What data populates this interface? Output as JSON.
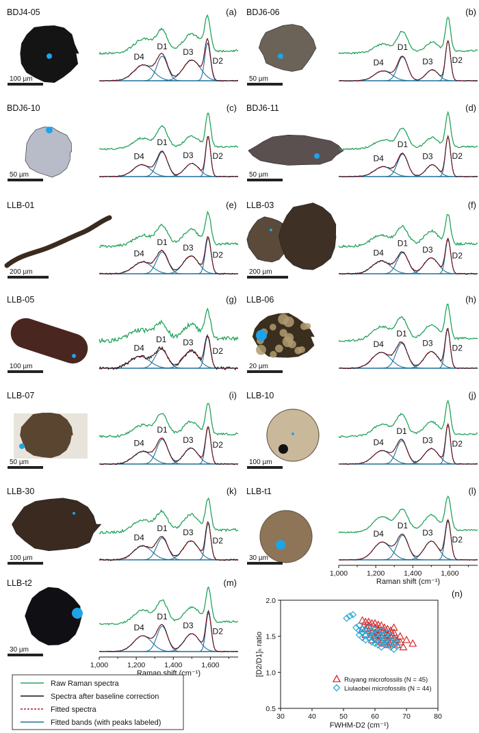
{
  "panels": [
    {
      "letter": "(a)",
      "specimen": "BDJ4-05",
      "scale_label": "100 µm",
      "noise": 1.5,
      "noise_fit": 0.7,
      "bands": {
        "D4": [
          0.4,
          1240,
          95
        ],
        "D1": [
          0.62,
          1340,
          52
        ],
        "D3": [
          0.52,
          1500,
          85
        ],
        "D2": [
          0.95,
          1585,
          28
        ]
      }
    },
    {
      "letter": "(b)",
      "specimen": "BDJ6-06",
      "scale_label": "50 µm",
      "noise": 1.2,
      "noise_fit": 0.5,
      "bands": {
        "D4": [
          0.25,
          1240,
          85
        ],
        "D1": [
          0.6,
          1345,
          50
        ],
        "D3": [
          0.28,
          1505,
          60
        ],
        "D2": [
          1.0,
          1590,
          25
        ]
      }
    },
    {
      "letter": "(c)",
      "specimen": "BDJ6-10",
      "scale_label": "50 µm",
      "noise": 1.2,
      "noise_fit": 0.6,
      "bands": {
        "D4": [
          0.3,
          1230,
          85
        ],
        "D1": [
          0.62,
          1340,
          52
        ],
        "D3": [
          0.33,
          1500,
          70
        ],
        "D2": [
          1.0,
          1588,
          24
        ]
      }
    },
    {
      "letter": "(d)",
      "specimen": "BDJ6-11",
      "scale_label": "50 µm",
      "noise": 1.2,
      "noise_fit": 0.6,
      "bands": {
        "D4": [
          0.25,
          1240,
          85
        ],
        "D1": [
          0.57,
          1345,
          50
        ],
        "D3": [
          0.3,
          1505,
          60
        ],
        "D2": [
          1.0,
          1590,
          25
        ]
      }
    },
    {
      "letter": "(e)",
      "specimen": "LLB-01",
      "scale_label": "200 µm",
      "noise": 1.8,
      "noise_fit": 0.9,
      "bands": {
        "D4": [
          0.3,
          1235,
          90
        ],
        "D1": [
          0.55,
          1340,
          55
        ],
        "D3": [
          0.45,
          1495,
          75
        ],
        "D2": [
          0.9,
          1588,
          28
        ]
      }
    },
    {
      "letter": "(f)",
      "specimen": "LLB-03",
      "scale_label": "200 µm",
      "noise": 1.8,
      "noise_fit": 0.9,
      "bands": {
        "D4": [
          0.32,
          1230,
          90
        ],
        "D1": [
          0.53,
          1345,
          55
        ],
        "D3": [
          0.4,
          1500,
          70
        ],
        "D2": [
          0.86,
          1590,
          26
        ]
      }
    },
    {
      "letter": "(g)",
      "specimen": "LLB-05",
      "scale_label": "100 µm",
      "noise": 3.2,
      "noise_fit": 2.2,
      "bands": {
        "D4": [
          0.3,
          1220,
          95
        ],
        "D1": [
          0.48,
          1335,
          60
        ],
        "D3": [
          0.44,
          1495,
          75
        ],
        "D2": [
          0.8,
          1585,
          28
        ]
      }
    },
    {
      "letter": "(h)",
      "specimen": "LLB-06",
      "scale_label": "20 µm",
      "noise": 1.5,
      "noise_fit": 0.8,
      "bands": {
        "D4": [
          0.4,
          1230,
          90
        ],
        "D1": [
          0.63,
          1340,
          55
        ],
        "D3": [
          0.42,
          1500,
          70
        ],
        "D2": [
          0.98,
          1588,
          25
        ]
      }
    },
    {
      "letter": "(i)",
      "specimen": "LLB-07",
      "scale_label": "50 µm",
      "noise": 1.6,
      "noise_fit": 0.8,
      "bands": {
        "D4": [
          0.32,
          1235,
          90
        ],
        "D1": [
          0.62,
          1340,
          55
        ],
        "D3": [
          0.4,
          1495,
          70
        ],
        "D2": [
          0.92,
          1588,
          26
        ]
      }
    },
    {
      "letter": "(j)",
      "specimen": "LLB-10",
      "scale_label": "100 µm",
      "noise": 1.3,
      "noise_fit": 0.6,
      "bands": {
        "D4": [
          0.34,
          1235,
          88
        ],
        "D1": [
          0.59,
          1340,
          52
        ],
        "D3": [
          0.39,
          1500,
          70
        ],
        "D2": [
          0.98,
          1590,
          24
        ]
      }
    },
    {
      "letter": "(k)",
      "specimen": "LLB-30",
      "scale_label": "100 µm",
      "noise": 1.8,
      "noise_fit": 1.0,
      "bands": {
        "D4": [
          0.35,
          1235,
          90
        ],
        "D1": [
          0.55,
          1340,
          55
        ],
        "D3": [
          0.48,
          1495,
          75
        ],
        "D2": [
          0.92,
          1588,
          26
        ]
      }
    },
    {
      "letter": "(l)",
      "specimen": "LLB-t1",
      "scale_label": "30 µm",
      "noise": 1.0,
      "noise_fit": 0.4,
      "bands": {
        "D4": [
          0.45,
          1235,
          85
        ],
        "D1": [
          0.62,
          1345,
          55
        ],
        "D3": [
          0.47,
          1500,
          70
        ],
        "D2": [
          0.98,
          1590,
          28
        ]
      }
    },
    {
      "letter": "(m)",
      "specimen": "LLB-t2",
      "scale_label": "30 µm",
      "noise": 1.2,
      "noise_fit": 0.5,
      "bands": {
        "D4": [
          0.4,
          1235,
          88
        ],
        "D1": [
          0.64,
          1340,
          52
        ],
        "D3": [
          0.45,
          1500,
          75
        ],
        "D2": [
          0.98,
          1590,
          26
        ]
      }
    }
  ],
  "band_labels": [
    "D4",
    "D1",
    "D3",
    "D2"
  ],
  "spectra_axis": {
    "xlabel": "Raman shift (cm⁻¹)",
    "ticks": [
      "1,000",
      "1,200",
      "1,400",
      "1,600"
    ],
    "xlim": [
      1000,
      1750
    ]
  },
  "legend": {
    "items": [
      {
        "label": "Raw Raman spectra",
        "color": "#22a35a",
        "style": "solid"
      },
      {
        "label": "Spectra after baseline correction",
        "color": "#111111",
        "style": "solid"
      },
      {
        "label": "Fitted spectra",
        "color": "#b2182b",
        "style": "dotted"
      },
      {
        "label": "Fitted bands (with peaks labeled)",
        "color": "#1f6f9a",
        "style": "solid"
      }
    ]
  },
  "chart_data": {
    "type": "scatter",
    "panel_letter": "(n)",
    "xlabel": "FWHM-D2 (cm⁻¹)",
    "ylabel": "[D2/D1]ₕ ratio",
    "xlim": [
      30,
      80
    ],
    "ylim": [
      0.5,
      2.0
    ],
    "xticks": [
      "30",
      "40",
      "50",
      "60",
      "70",
      "80"
    ],
    "yticks": [
      "0.5",
      "1.0",
      "1.5",
      "2.0"
    ],
    "legend_position": "bottom-right",
    "series": [
      {
        "name": "Ruyang microfossils (N = 45)",
        "marker": "triangle",
        "color": "#d62728",
        "points": [
          [
            56,
            1.72
          ],
          [
            57,
            1.7
          ],
          [
            58,
            1.65
          ],
          [
            59,
            1.68
          ],
          [
            60,
            1.62
          ],
          [
            60,
            1.55
          ],
          [
            61,
            1.6
          ],
          [
            61,
            1.52
          ],
          [
            62,
            1.58
          ],
          [
            62,
            1.5
          ],
          [
            63,
            1.55
          ],
          [
            63,
            1.48
          ],
          [
            64,
            1.52
          ],
          [
            64,
            1.45
          ],
          [
            65,
            1.5
          ],
          [
            65,
            1.42
          ],
          [
            66,
            1.48
          ],
          [
            66,
            1.55
          ],
          [
            67,
            1.45
          ],
          [
            67,
            1.38
          ],
          [
            68,
            1.5
          ],
          [
            68,
            1.42
          ],
          [
            69,
            1.35
          ],
          [
            70,
            1.45
          ],
          [
            72,
            1.4
          ],
          [
            57,
            1.6
          ],
          [
            58,
            1.58
          ],
          [
            59,
            1.55
          ],
          [
            60,
            1.5
          ],
          [
            61,
            1.45
          ],
          [
            62,
            1.42
          ],
          [
            63,
            1.62
          ],
          [
            64,
            1.6
          ],
          [
            65,
            1.58
          ],
          [
            66,
            1.4
          ],
          [
            58,
            1.7
          ],
          [
            59,
            1.45
          ],
          [
            57,
            1.52
          ],
          [
            56,
            1.6
          ],
          [
            60,
            1.68
          ],
          [
            62,
            1.65
          ],
          [
            64,
            1.38
          ],
          [
            66,
            1.62
          ],
          [
            63,
            1.4
          ],
          [
            61,
            1.66
          ]
        ]
      },
      {
        "name": "Liulaobei microfossils (N = 44)",
        "marker": "diamond",
        "color": "#29a7d6",
        "points": [
          [
            52,
            1.78
          ],
          [
            53,
            1.8
          ],
          [
            51,
            1.75
          ],
          [
            54,
            1.62
          ],
          [
            55,
            1.58
          ],
          [
            56,
            1.55
          ],
          [
            57,
            1.52
          ],
          [
            58,
            1.48
          ],
          [
            59,
            1.5
          ],
          [
            60,
            1.45
          ],
          [
            61,
            1.48
          ],
          [
            62,
            1.42
          ],
          [
            63,
            1.4
          ],
          [
            64,
            1.38
          ],
          [
            65,
            1.35
          ],
          [
            66,
            1.32
          ],
          [
            67,
            1.36
          ],
          [
            55,
            1.65
          ],
          [
            56,
            1.6
          ],
          [
            57,
            1.58
          ],
          [
            58,
            1.55
          ],
          [
            59,
            1.42
          ],
          [
            60,
            1.52
          ],
          [
            61,
            1.38
          ],
          [
            62,
            1.5
          ],
          [
            63,
            1.45
          ],
          [
            64,
            1.48
          ],
          [
            65,
            1.42
          ],
          [
            66,
            1.4
          ],
          [
            58,
            1.62
          ],
          [
            59,
            1.58
          ],
          [
            60,
            1.6
          ],
          [
            61,
            1.55
          ],
          [
            62,
            1.58
          ],
          [
            57,
            1.45
          ],
          [
            56,
            1.48
          ],
          [
            55,
            1.52
          ],
          [
            63,
            1.52
          ],
          [
            64,
            1.55
          ],
          [
            65,
            1.5
          ],
          [
            66,
            1.45
          ],
          [
            67,
            1.42
          ],
          [
            60,
            1.4
          ],
          [
            62,
            1.35
          ]
        ]
      }
    ]
  }
}
